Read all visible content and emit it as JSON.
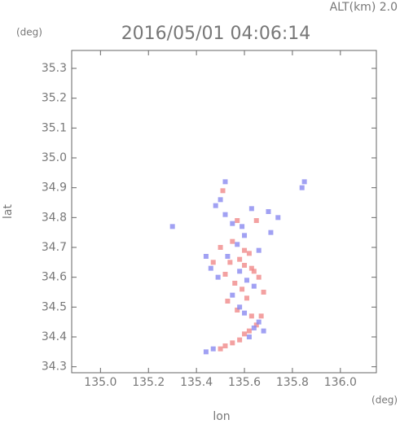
{
  "chart_data": {
    "type": "scatter",
    "title": "2016/05/01 04:06:14",
    "annotation": "ALT(km) 2.0",
    "y_unit": "(deg)",
    "x_unit": "(deg)",
    "x_label": "lon",
    "y_label": "lat",
    "xlim": [
      134.88,
      136.15
    ],
    "ylim": [
      34.28,
      35.36
    ],
    "xticks": [
      {
        "value": 135,
        "label": "135.0"
      },
      135.2,
      135.4,
      135.6,
      135.8,
      {
        "value": 136,
        "label": "136.0"
      }
    ],
    "yticks": [
      34.3,
      34.4,
      34.5,
      34.6,
      34.7,
      34.8,
      34.9,
      {
        "value": 35,
        "label": "35.0"
      },
      35.1,
      35.2,
      35.3
    ],
    "series": [
      {
        "color": "#f08a8a",
        "x": [
          135.5,
          135.52,
          135.55,
          135.58,
          135.6,
          135.62,
          135.65,
          135.63,
          135.57,
          135.53,
          135.61,
          135.59,
          135.56,
          135.66,
          135.64,
          135.6,
          135.58,
          135.54,
          135.52,
          135.62,
          135.67,
          135.47,
          135.5,
          135.55,
          135.6,
          135.63,
          135.68,
          135.51,
          135.57,
          135.65
        ],
        "y": [
          34.36,
          34.37,
          34.38,
          34.39,
          34.41,
          34.42,
          34.44,
          34.47,
          34.49,
          34.52,
          34.53,
          34.56,
          34.58,
          34.6,
          34.62,
          34.64,
          34.66,
          34.65,
          34.61,
          34.68,
          34.47,
          34.65,
          34.7,
          34.72,
          34.69,
          34.63,
          34.55,
          34.89,
          34.79,
          34.79
        ]
      },
      {
        "color": "#8a8af0",
        "x": [
          135.44,
          135.47,
          135.62,
          135.64,
          135.66,
          135.6,
          135.58,
          135.55,
          135.68,
          135.7,
          135.74,
          135.84,
          135.85,
          135.48,
          135.5,
          135.52,
          135.55,
          135.44,
          135.46,
          135.49,
          135.64,
          135.61,
          135.58,
          135.53,
          135.57,
          135.6,
          135.66,
          135.52,
          135.3,
          135.59,
          135.63,
          135.71
        ],
        "y": [
          34.35,
          34.36,
          34.4,
          34.43,
          34.45,
          34.48,
          34.5,
          34.54,
          34.42,
          34.82,
          34.8,
          34.9,
          34.92,
          34.84,
          34.86,
          34.81,
          34.78,
          34.67,
          34.63,
          34.6,
          34.57,
          34.59,
          34.62,
          34.67,
          34.71,
          34.74,
          34.69,
          34.92,
          34.77,
          34.77,
          34.83,
          34.75
        ]
      }
    ]
  }
}
